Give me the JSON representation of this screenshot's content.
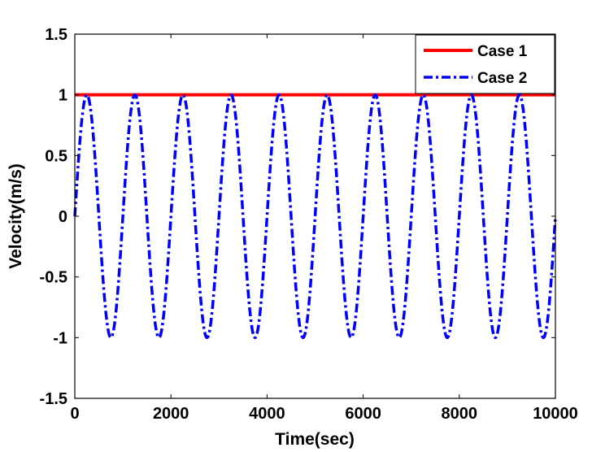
{
  "chart_data": {
    "type": "line",
    "title": "",
    "xlabel": "Time(sec)",
    "ylabel": "Velocity(m/s)",
    "xlim": [
      0,
      10000
    ],
    "ylim": [
      -1.5,
      1.5
    ],
    "xticks": [
      0,
      2000,
      4000,
      6000,
      8000,
      10000
    ],
    "yticks": [
      -1.5,
      -1,
      -0.5,
      0,
      0.5,
      1,
      1.5
    ],
    "xtick_labels": [
      "0",
      "2000",
      "4000",
      "6000",
      "8000",
      "10000"
    ],
    "ytick_labels": [
      "-1.5",
      "-1",
      "-0.5",
      "0",
      "0.5",
      "1",
      "1.5"
    ],
    "grid": false,
    "legend_position": "top-right",
    "series": [
      {
        "name": "Case 1",
        "color": "#ff0000",
        "style": "solid",
        "x": [
          0,
          10000
        ],
        "y": [
          1,
          1
        ]
      },
      {
        "name": "Case 2",
        "color": "#0000ff",
        "style": "dash-dot",
        "function": "sin",
        "amplitude": 1,
        "period": 1000,
        "x_start": 0,
        "x_end": 10000
      }
    ]
  }
}
